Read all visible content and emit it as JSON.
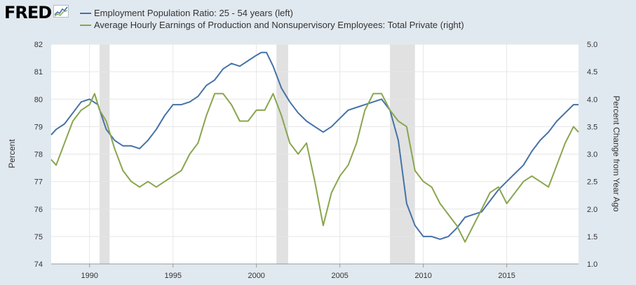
{
  "header": {
    "logo_text": "FRED",
    "legend": [
      {
        "label": "Employment Population Ratio: 25 - 54 years (left)",
        "color": "#4572a7"
      },
      {
        "label": "Average Hourly Earnings of Production and Nonsupervisory Employees: Total Private (right)",
        "color": "#89a54e"
      }
    ]
  },
  "chart_data": {
    "type": "line",
    "xlabel": "",
    "ylabel": "Percent",
    "y2label": "Percent Change from Year Ago",
    "xlim": [
      1987.7,
      2019.3
    ],
    "ylim": [
      74,
      82
    ],
    "y2lim": [
      1.0,
      5.0
    ],
    "xticks": [
      1990,
      1995,
      2000,
      2005,
      2010,
      2015
    ],
    "yticks": [
      74,
      75,
      76,
      77,
      78,
      79,
      80,
      81,
      82
    ],
    "y2ticks": [
      "1.0",
      "1.5",
      "2.0",
      "2.5",
      "3.0",
      "3.5",
      "4.0",
      "4.5",
      "5.0"
    ],
    "recessions": [
      [
        1990.6,
        1991.2
      ],
      [
        2001.2,
        2001.9
      ],
      [
        2008.0,
        2009.5
      ]
    ],
    "grid": true,
    "series": [
      {
        "name": "Employment Population Ratio: 25 - 54 years (left)",
        "axis": "left",
        "color": "#4572a7",
        "x": [
          1987.7,
          1988.0,
          1988.5,
          1989.0,
          1989.5,
          1990.0,
          1990.5,
          1991.0,
          1991.5,
          1992.0,
          1992.5,
          1993.0,
          1993.5,
          1994.0,
          1994.5,
          1995.0,
          1995.5,
          1996.0,
          1996.5,
          1997.0,
          1997.5,
          1998.0,
          1998.5,
          1999.0,
          1999.5,
          2000.0,
          2000.3,
          2000.6,
          2001.0,
          2001.5,
          2002.0,
          2002.5,
          2003.0,
          2003.5,
          2004.0,
          2004.5,
          2005.0,
          2005.5,
          2006.0,
          2006.5,
          2007.0,
          2007.5,
          2008.0,
          2008.5,
          2009.0,
          2009.5,
          2010.0,
          2010.5,
          2011.0,
          2011.5,
          2012.0,
          2012.5,
          2013.0,
          2013.5,
          2014.0,
          2014.5,
          2015.0,
          2015.5,
          2016.0,
          2016.5,
          2017.0,
          2017.5,
          2018.0,
          2018.5,
          2019.0,
          2019.3
        ],
        "y": [
          78.7,
          78.9,
          79.1,
          79.5,
          79.9,
          80.0,
          79.8,
          78.9,
          78.5,
          78.3,
          78.3,
          78.2,
          78.5,
          78.9,
          79.4,
          79.8,
          79.8,
          79.9,
          80.1,
          80.5,
          80.7,
          81.1,
          81.3,
          81.2,
          81.4,
          81.6,
          81.7,
          81.7,
          81.2,
          80.4,
          79.9,
          79.5,
          79.2,
          79.0,
          78.8,
          79.0,
          79.3,
          79.6,
          79.7,
          79.8,
          79.9,
          80.0,
          79.6,
          78.5,
          76.2,
          75.4,
          75.0,
          75.0,
          74.9,
          75.0,
          75.3,
          75.7,
          75.8,
          75.9,
          76.3,
          76.7,
          77.0,
          77.3,
          77.6,
          78.1,
          78.5,
          78.8,
          79.2,
          79.5,
          79.8,
          79.8
        ]
      },
      {
        "name": "Average Hourly Earnings of Production and Nonsupervisory Employees: Total Private (right)",
        "axis": "right",
        "color": "#89a54e",
        "x": [
          1987.7,
          1988.0,
          1988.5,
          1989.0,
          1989.5,
          1990.0,
          1990.3,
          1990.6,
          1991.0,
          1991.5,
          1992.0,
          1992.5,
          1993.0,
          1993.5,
          1994.0,
          1994.5,
          1995.0,
          1995.5,
          1996.0,
          1996.5,
          1997.0,
          1997.5,
          1998.0,
          1998.5,
          1999.0,
          1999.5,
          2000.0,
          2000.5,
          2001.0,
          2001.5,
          2002.0,
          2002.5,
          2003.0,
          2003.5,
          2004.0,
          2004.5,
          2005.0,
          2005.5,
          2006.0,
          2006.5,
          2007.0,
          2007.5,
          2008.0,
          2008.5,
          2009.0,
          2009.5,
          2010.0,
          2010.5,
          2011.0,
          2011.5,
          2012.0,
          2012.5,
          2013.0,
          2013.5,
          2014.0,
          2014.5,
          2015.0,
          2015.5,
          2016.0,
          2016.5,
          2017.0,
          2017.5,
          2018.0,
          2018.5,
          2019.0,
          2019.3
        ],
        "y": [
          2.9,
          2.8,
          3.2,
          3.6,
          3.8,
          3.9,
          4.1,
          3.8,
          3.6,
          3.1,
          2.7,
          2.5,
          2.4,
          2.5,
          2.4,
          2.5,
          2.6,
          2.7,
          3.0,
          3.2,
          3.7,
          4.1,
          4.1,
          3.9,
          3.6,
          3.6,
          3.8,
          3.8,
          4.1,
          3.7,
          3.2,
          3.0,
          3.2,
          2.5,
          1.7,
          2.3,
          2.6,
          2.8,
          3.2,
          3.8,
          4.1,
          4.1,
          3.8,
          3.6,
          3.5,
          2.7,
          2.5,
          2.4,
          2.1,
          1.9,
          1.7,
          1.4,
          1.7,
          2.0,
          2.3,
          2.4,
          2.1,
          2.3,
          2.5,
          2.6,
          2.5,
          2.4,
          2.8,
          3.2,
          3.5,
          3.4
        ]
      }
    ]
  }
}
